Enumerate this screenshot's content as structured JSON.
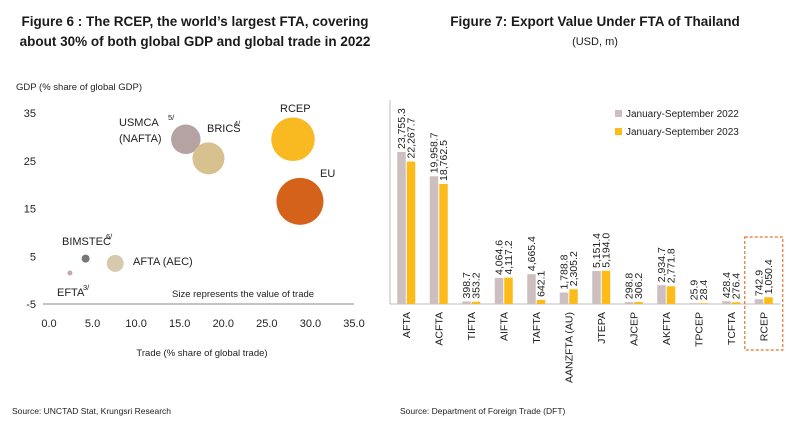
{
  "figure6": {
    "title": "Figure 6 : The RCEP, the world’s largest FTA, covering about 30% of both global GDP and global trade in 2022",
    "source": "Source: UNCTAD Stat, Krungsri Research"
  },
  "figure7": {
    "title": "Figure 7: Export Value Under FTA of Thailand",
    "unit": "(USD, m)",
    "source": "Source: Department of Foreign Trade (DFT)"
  },
  "chart_data": [
    {
      "type": "scatter",
      "variant": "bubble",
      "title": "",
      "xlabel": "Trade (% share of global trade)",
      "ylabel": "GDP (% share of global GDP)",
      "xlim": [
        0,
        35
      ],
      "ylim": [
        -5,
        35
      ],
      "xticks": [
        "0.0",
        "5.0",
        "10.0",
        "15.0",
        "20.0",
        "25.0",
        "30.0",
        "35.0"
      ],
      "yticks": [
        "35",
        "25",
        "15",
        "5",
        "-5"
      ],
      "annotation": "Size represents the value of trade",
      "grid": false,
      "points": [
        {
          "label": "USMCA",
          "label2": "(NAFTA)",
          "sup": "5/",
          "x": 15.7,
          "y": 29.5,
          "size": 5.9,
          "color": "#b5a3a3"
        },
        {
          "label": "BRICS",
          "label2": "",
          "sup": "4/",
          "x": 18.3,
          "y": 25.5,
          "size": 6.4,
          "color": "#d7c18e"
        },
        {
          "label": "RCEP",
          "label2": "",
          "sup": "",
          "x": 28.0,
          "y": 29.5,
          "size": 8.7,
          "color": "#f9b921"
        },
        {
          "label": "EU",
          "label2": "",
          "sup": "",
          "x": 28.8,
          "y": 16.5,
          "size": 9.4,
          "color": "#d4621a"
        },
        {
          "label": "BIMSTEC",
          "label2": "",
          "sup": "6/",
          "x": 4.2,
          "y": 4.5,
          "size": 1.6,
          "color": "#777777"
        },
        {
          "label": "AFTA (AEC)",
          "label2": "",
          "sup": "",
          "x": 7.6,
          "y": 3.5,
          "size": 3.4,
          "color": "#d7c9ae"
        },
        {
          "label": "EFTA",
          "label2": "",
          "sup": "3/",
          "x": 2.4,
          "y": 1.5,
          "size": 1.0,
          "color": "#c8a8a8"
        }
      ]
    },
    {
      "type": "bar",
      "title": "",
      "xlabel": "",
      "ylabel": "",
      "ylim": [
        0,
        33000
      ],
      "grid": false,
      "legend_position": "top-right",
      "categories": [
        "AFTA",
        "ACFTA",
        "TIFTA",
        "AIFTA",
        "TAFTA",
        "AANZFTA (AU)",
        "JTEPA",
        "AJCEP",
        "AKFTA",
        "TPCEP",
        "TCFTA",
        "RCEP"
      ],
      "highlight_category": "RCEP",
      "series": [
        {
          "name": "January-September 2022",
          "color": "#cdbfc0",
          "values": [
            23755.3,
            19958.7,
            398.7,
            4064.6,
            4665.4,
            1788.8,
            5151.4,
            298.8,
            2934.7,
            25.9,
            428.4,
            742.9
          ],
          "labels": [
            "23,755.3",
            "19,958.7",
            "398.7",
            "4,064.6",
            "4,665.4",
            "1,788.8",
            "5,151.4",
            "298.8",
            "2,934.7",
            "25.9",
            "428.4",
            "742.9"
          ]
        },
        {
          "name": "January-September 2023",
          "color": "#fdbb1a",
          "values": [
            22267.7,
            18762.5,
            353.2,
            4117.2,
            642.1,
            2305.2,
            5194.0,
            306.2,
            2771.8,
            28.4,
            276.4,
            1050.4
          ],
          "labels": [
            "22,267.7",
            "18,762.5",
            "353.2",
            "4,117.2",
            "642.1",
            "2,305.2",
            "5,194.0",
            "306.2",
            "2,771.8",
            "28.4",
            "276.4",
            "1,050.4"
          ]
        }
      ]
    }
  ]
}
